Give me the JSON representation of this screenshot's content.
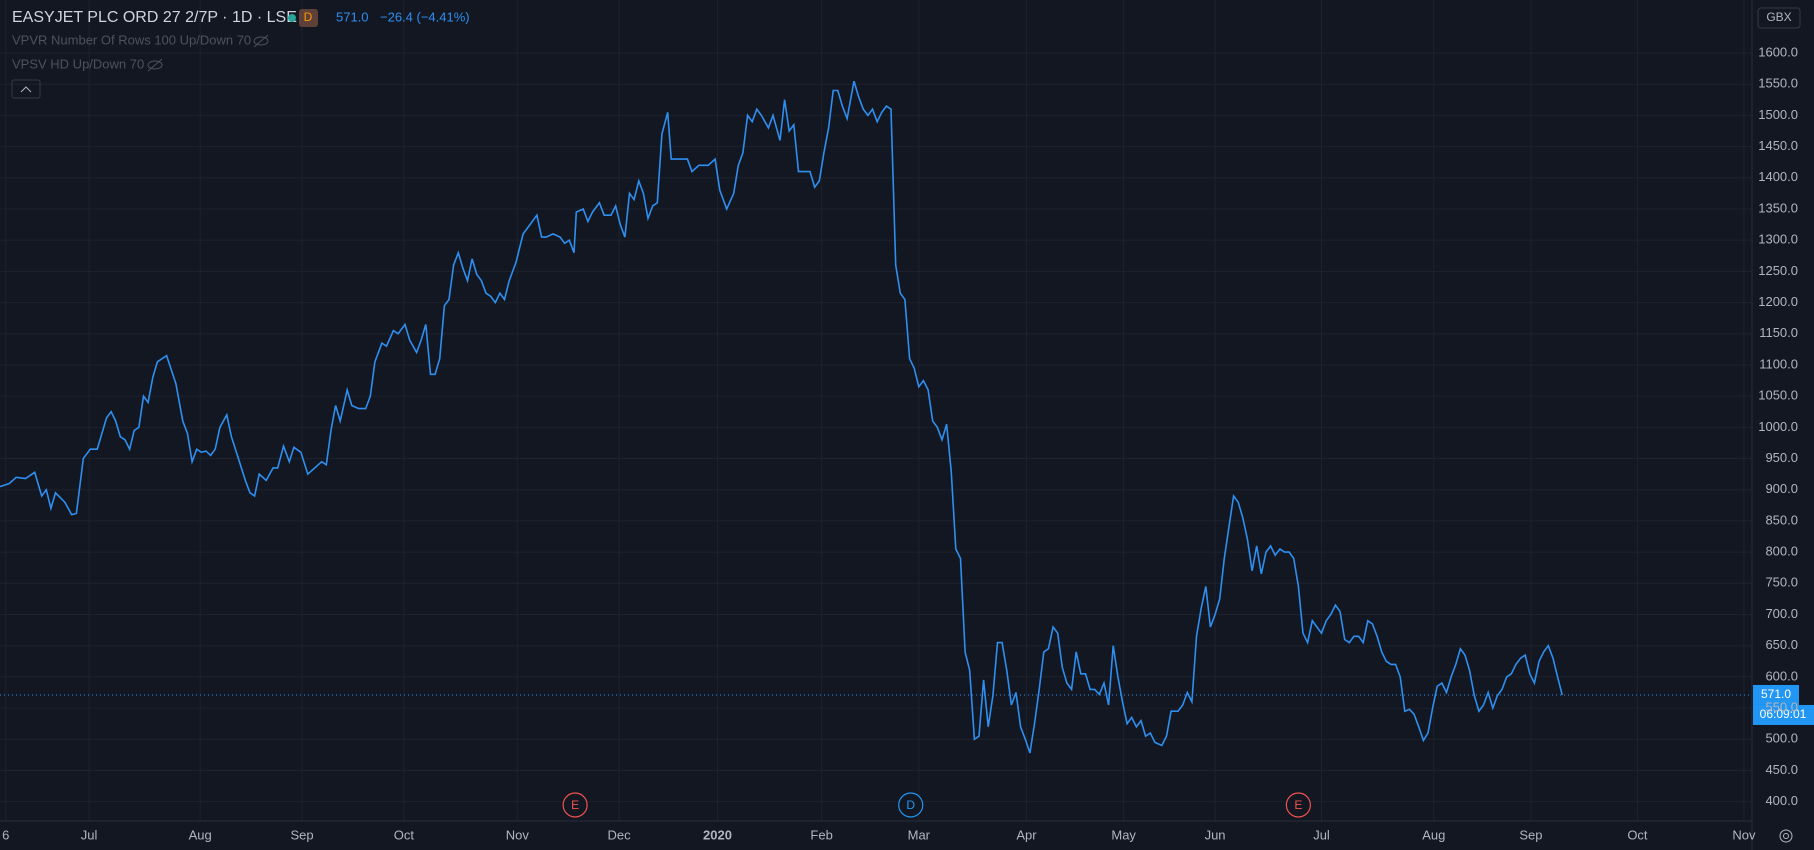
{
  "chart_data": {
    "type": "line",
    "title": "EASYJET PLC ORD 27 2/7P · 1D · LSE",
    "badge": "D",
    "last": {
      "value": 571,
      "label": "571.0"
    },
    "change": "−26.4 (−4.41%)",
    "indicators": [
      "VPVR Number Of Rows 100 Up/Down 70",
      "VPSV HD Up/Down 70"
    ],
    "currency": "GBX",
    "countdown": "06:09:01",
    "grid": true,
    "xlim": [
      0,
      1514
    ],
    "ylim": [
      369,
      1685
    ],
    "xticks": [
      {
        "value": 5,
        "label": "6"
      },
      {
        "value": 77,
        "label": "Jul"
      },
      {
        "value": 173,
        "label": "Aug"
      },
      {
        "value": 261,
        "label": "Sep"
      },
      {
        "value": 349,
        "label": "Oct"
      },
      {
        "value": 447,
        "label": "Nov"
      },
      {
        "value": 535,
        "label": "Dec"
      },
      {
        "value": 620,
        "label": "2020"
      },
      {
        "value": 710,
        "label": "Feb"
      },
      {
        "value": 794,
        "label": "Mar"
      },
      {
        "value": 887,
        "label": "Apr"
      },
      {
        "value": 971,
        "label": "May"
      },
      {
        "value": 1050,
        "label": "Jun"
      },
      {
        "value": 1142,
        "label": "Jul"
      },
      {
        "value": 1239,
        "label": "Aug"
      },
      {
        "value": 1323,
        "label": "Sep"
      },
      {
        "value": 1415,
        "label": "Oct"
      },
      {
        "value": 1507,
        "label": "Nov"
      }
    ],
    "yticks": [
      {
        "value": 400,
        "label": "400.0"
      },
      {
        "value": 450,
        "label": "450.0"
      },
      {
        "value": 500,
        "label": "500.0"
      },
      {
        "value": 550,
        "label": "550.0"
      },
      {
        "value": 600,
        "label": "600.0"
      },
      {
        "value": 650,
        "label": "650.0"
      },
      {
        "value": 700,
        "label": "700.0"
      },
      {
        "value": 750,
        "label": "750.0"
      },
      {
        "value": 800,
        "label": "800.0"
      },
      {
        "value": 850,
        "label": "850.0"
      },
      {
        "value": 900,
        "label": "900.0"
      },
      {
        "value": 950,
        "label": "950.0"
      },
      {
        "value": 1000,
        "label": "1000.0"
      },
      {
        "value": 1050,
        "label": "1050.0"
      },
      {
        "value": 1100,
        "label": "1100.0"
      },
      {
        "value": 1150,
        "label": "1150.0"
      },
      {
        "value": 1200,
        "label": "1200.0"
      },
      {
        "value": 1250,
        "label": "1250.0"
      },
      {
        "value": 1300,
        "label": "1300.0"
      },
      {
        "value": 1350,
        "label": "1350.0"
      },
      {
        "value": 1400,
        "label": "1400.0"
      },
      {
        "value": 1450,
        "label": "1450.0"
      },
      {
        "value": 1500,
        "label": "1500.0"
      },
      {
        "value": 1550,
        "label": "1550.0"
      },
      {
        "value": 1600,
        "label": "1600.0"
      }
    ],
    "events": [
      {
        "label": "E",
        "x": 497,
        "color": "#f05350"
      },
      {
        "label": "D",
        "x": 787,
        "color": "#2196f3"
      },
      {
        "label": "E",
        "x": 1122,
        "color": "#f05350"
      }
    ],
    "series": [
      {
        "name": "EASYJET PLC ORD 27 2/7P",
        "color": "#2e8ff0",
        "x": [
          0,
          8,
          14,
          22,
          30,
          36,
          40,
          44,
          48,
          56,
          62,
          66,
          72,
          78,
          84,
          92,
          96,
          100,
          104,
          108,
          112,
          116,
          120,
          124,
          128,
          132,
          136,
          144,
          152,
          158,
          162,
          166,
          170,
          174,
          178,
          182,
          186,
          190,
          196,
          200,
          206,
          212,
          216,
          220,
          224,
          230,
          236,
          240,
          245,
          250,
          254,
          260,
          266,
          272,
          278,
          282,
          286,
          290,
          294,
          300,
          304,
          310,
          316,
          320,
          324,
          330,
          334,
          340,
          344,
          350,
          354,
          360,
          364,
          368,
          372,
          376,
          380,
          384,
          388,
          392,
          396,
          400,
          404,
          408,
          412,
          416,
          420,
          424,
          428,
          432,
          436,
          440,
          446,
          452,
          458,
          464,
          468,
          472,
          478,
          484,
          488,
          492,
          496,
          498,
          504,
          508,
          512,
          518,
          522,
          528,
          532,
          536,
          540,
          544,
          548,
          552,
          556,
          560,
          564,
          568,
          572,
          577,
          580,
          586,
          594,
          598,
          604,
          612,
          618,
          622,
          628,
          634,
          638,
          642,
          646,
          650,
          654,
          658,
          664,
          668,
          674,
          678,
          682,
          686,
          690,
          696,
          700,
          704,
          708,
          712,
          716,
          720,
          724,
          728,
          732,
          738,
          742,
          746,
          750,
          754,
          758,
          762,
          766,
          770,
          774,
          778,
          782,
          786,
          790,
          794,
          798,
          802,
          806,
          810,
          814,
          818,
          822,
          826,
          830,
          834,
          838,
          842,
          846,
          850,
          854,
          858,
          862,
          866,
          870,
          874,
          878,
          882,
          886,
          890,
          894,
          898,
          902,
          906,
          910,
          914,
          918,
          922,
          926,
          930,
          934,
          938,
          942,
          946,
          950,
          954,
          958,
          962,
          966,
          970,
          974,
          978,
          982,
          986,
          990,
          994,
          998,
          1004,
          1008,
          1012,
          1018,
          1022,
          1026,
          1030,
          1034,
          1038,
          1042,
          1046,
          1050,
          1054,
          1058,
          1062,
          1066,
          1070,
          1074,
          1078,
          1082,
          1086,
          1090,
          1094,
          1098,
          1102,
          1106,
          1110,
          1114,
          1118,
          1122,
          1126,
          1130,
          1134,
          1138,
          1142,
          1146,
          1150,
          1154,
          1158,
          1162,
          1166,
          1170,
          1174,
          1178,
          1182,
          1186,
          1190,
          1194,
          1198,
          1202,
          1206,
          1210,
          1214,
          1218,
          1222,
          1226,
          1230,
          1234,
          1238,
          1242,
          1246,
          1250,
          1254,
          1258,
          1262,
          1266,
          1270,
          1274,
          1278,
          1282,
          1286,
          1290,
          1294,
          1298,
          1302,
          1306,
          1310,
          1314,
          1318,
          1322,
          1326,
          1330,
          1334,
          1338,
          1342,
          1346,
          1350
        ],
        "values": [
          905,
          910,
          920,
          918,
          928,
          890,
          900,
          870,
          895,
          880,
          860,
          862,
          950,
          965,
          965,
          1015,
          1025,
          1010,
          985,
          980,
          965,
          995,
          1000,
          1050,
          1040,
          1080,
          1105,
          1115,
          1070,
          1010,
          990,
          945,
          965,
          960,
          962,
          955,
          965,
          1000,
          1020,
          985,
          950,
          915,
          895,
          890,
          925,
          915,
          935,
          935,
          970,
          945,
          968,
          960,
          925,
          935,
          945,
          940,
          995,
          1035,
          1010,
          1060,
          1035,
          1030,
          1030,
          1050,
          1105,
          1135,
          1130,
          1155,
          1150,
          1165,
          1140,
          1120,
          1140,
          1165,
          1085,
          1085,
          1110,
          1195,
          1205,
          1260,
          1280,
          1255,
          1235,
          1270,
          1245,
          1235,
          1215,
          1210,
          1200,
          1215,
          1205,
          1235,
          1265,
          1310,
          1325,
          1340,
          1305,
          1305,
          1310,
          1305,
          1295,
          1300,
          1280,
          1345,
          1350,
          1330,
          1345,
          1360,
          1340,
          1340,
          1355,
          1325,
          1305,
          1375,
          1365,
          1395,
          1375,
          1335,
          1355,
          1360,
          1470,
          1505,
          1430,
          1430,
          1430,
          1410,
          1420,
          1420,
          1430,
          1380,
          1350,
          1375,
          1420,
          1440,
          1500,
          1490,
          1510,
          1500,
          1480,
          1500,
          1460,
          1525,
          1475,
          1485,
          1410,
          1410,
          1410,
          1385,
          1395,
          1440,
          1480,
          1540,
          1540,
          1515,
          1495,
          1555,
          1530,
          1510,
          1500,
          1510,
          1490,
          1505,
          1515,
          1510,
          1260,
          1215,
          1205,
          1110,
          1095,
          1065,
          1075,
          1060,
          1010,
          1000,
          980,
          1005,
          930,
          805,
          790,
          640,
          610,
          500,
          505,
          595,
          520,
          570,
          655,
          655,
          610,
          555,
          575,
          520,
          500,
          478,
          525,
          580,
          640,
          645,
          680,
          670,
          615,
          590,
          580,
          640,
          605,
          605,
          580,
          580,
          572,
          590,
          555,
          650,
          600,
          560,
          525,
          535,
          520,
          530,
          505,
          510,
          495,
          490,
          505,
          545,
          545,
          555,
          575,
          560,
          665,
          710,
          745,
          680,
          700,
          725,
          790,
          840,
          890,
          880,
          855,
          820,
          770,
          810,
          765,
          800,
          810,
          795,
          805,
          800,
          800,
          790,
          745,
          670,
          655,
          690,
          680,
          670,
          690,
          700,
          715,
          705,
          660,
          655,
          665,
          665,
          655,
          690,
          685,
          665,
          640,
          625,
          620,
          620,
          600,
          545,
          548,
          540,
          520,
          498,
          510,
          550,
          585,
          590,
          575,
          600,
          620,
          645,
          635,
          610,
          570,
          545,
          555,
          575,
          550,
          570,
          580,
          600,
          605,
          620,
          630,
          635,
          605,
          590,
          625,
          640,
          650,
          630,
          600,
          571
        ]
      }
    ]
  }
}
